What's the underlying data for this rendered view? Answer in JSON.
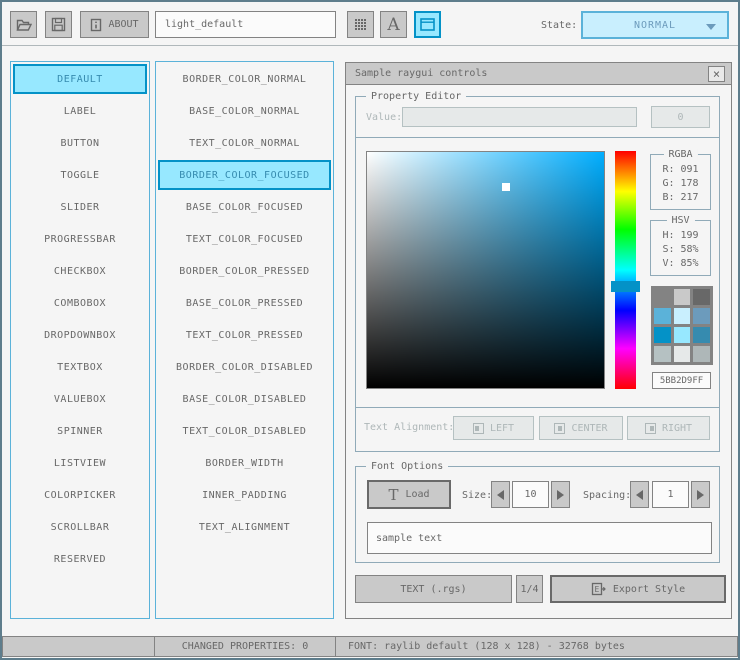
{
  "toolbar": {
    "about_label": "ABOUT",
    "style_name": "light_default",
    "state_label": "State:",
    "state_value": "NORMAL"
  },
  "controls": {
    "selected": "DEFAULT",
    "items": [
      "DEFAULT",
      "LABEL",
      "BUTTON",
      "TOGGLE",
      "SLIDER",
      "PROGRESSBAR",
      "CHECKBOX",
      "COMBOBOX",
      "DROPDOWNBOX",
      "TEXTBOX",
      "VALUEBOX",
      "SPINNER",
      "LISTVIEW",
      "COLORPICKER",
      "SCROLLBAR",
      "RESERVED"
    ]
  },
  "properties": {
    "selected": "BORDER_COLOR_FOCUSED",
    "items": [
      "BORDER_COLOR_NORMAL",
      "BASE_COLOR_NORMAL",
      "TEXT_COLOR_NORMAL",
      "BORDER_COLOR_FOCUSED",
      "BASE_COLOR_FOCUSED",
      "TEXT_COLOR_FOCUSED",
      "BORDER_COLOR_PRESSED",
      "BASE_COLOR_PRESSED",
      "TEXT_COLOR_PRESSED",
      "BORDER_COLOR_DISABLED",
      "BASE_COLOR_DISABLED",
      "TEXT_COLOR_DISABLED",
      "BORDER_WIDTH",
      "INNER_PADDING",
      "TEXT_ALIGNMENT"
    ]
  },
  "window": {
    "title": "Sample raygui controls",
    "close_glyph": "×"
  },
  "property_editor": {
    "title": "Property Editor",
    "value_label": "Value:",
    "value_button": "0",
    "rgba_title": "RGBA",
    "rgba_rows": [
      {
        "label": "R:",
        "value": "091"
      },
      {
        "label": "G:",
        "value": "178"
      },
      {
        "label": "B:",
        "value": "217"
      }
    ],
    "hsv_title": "HSV",
    "hsv_rows": [
      {
        "label": "H:",
        "value": "199"
      },
      {
        "label": "S:",
        "value": "58%"
      },
      {
        "label": "V:",
        "value": "85%"
      }
    ],
    "hex_value": "5BB2D9FF",
    "alignment_label": "Text Alignment:",
    "alignment_buttons": [
      "LEFT",
      "CENTER",
      "RIGHT"
    ],
    "palette": [
      "#838383",
      "#c9c9c9",
      "#686868",
      "#5bb2d9",
      "#c9effe",
      "#6c9bbc",
      "#0492c7",
      "#97e8ff",
      "#368baf",
      "#b5c1c2",
      "#e6e9e9",
      "#aeb7b8"
    ]
  },
  "font_options": {
    "title": "Font Options",
    "load_label": "Load",
    "size_label": "Size:",
    "size_value": "10",
    "spacing_label": "Spacing:",
    "spacing_value": "1",
    "sample_text": "sample text"
  },
  "export_bar": {
    "format_label": "TEXT (.rgs)",
    "page_label": "1/4",
    "export_label": "Export Style"
  },
  "statusbar": {
    "changed_properties": "CHANGED PROPERTIES: 0",
    "font_info": "FONT: raylib default (128 x 128) - 32768 bytes"
  },
  "colors": {
    "accent_border": "#0492c7",
    "accent_base": "#97e8ff",
    "focused_border": "#5bb2d9",
    "focused_base": "#c9effe",
    "focused_text": "#6c9bbc",
    "current_hue": "#00aeff",
    "picked_color": "#5bb2d9"
  }
}
